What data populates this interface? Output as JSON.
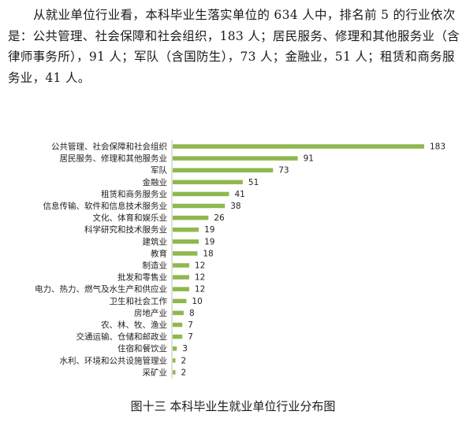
{
  "paragraph": "从就业单位行业看，本科毕业生落实单位的 634 人中，排名前 5 的行业依次是：公共管理、社会保障和社会组织，183 人；居民服务、修理和其他服务业（含律师事务所），91 人；军队（含国防生），73 人；金融业，51 人；租赁和商务服务业，41 人。",
  "caption": "图十三  本科毕业生就业单位行业分布图",
  "colors": {
    "bar": "#8fb84e",
    "axis": "#bfbfbf",
    "label": "#222222"
  },
  "chart_data": {
    "type": "bar",
    "orientation": "horizontal",
    "categories": [
      "公共管理、社会保障和社会组织",
      "居民服务、修理和其他服务业",
      "军队",
      "金融业",
      "租赁和商务服务业",
      "信息传输、软件和信息技术服务业",
      "文化、体育和娱乐业",
      "科学研究和技术服务业",
      "建筑业",
      "教育",
      "制造业",
      "批发和零售业",
      "电力、热力、燃气及水生产和供应业",
      "卫生和社会工作",
      "房地产业",
      "农、林、牧、渔业",
      "交通运输、仓储和邮政业",
      "住宿和餐饮业",
      "水利、环境和公共设施管理业",
      "采矿业"
    ],
    "values": [
      183,
      91,
      73,
      51,
      41,
      38,
      26,
      19,
      19,
      18,
      12,
      12,
      12,
      10,
      8,
      7,
      7,
      3,
      2,
      2
    ],
    "data_labels": true,
    "xlim": [
      0,
      190
    ],
    "grid": false,
    "legend": "none"
  }
}
